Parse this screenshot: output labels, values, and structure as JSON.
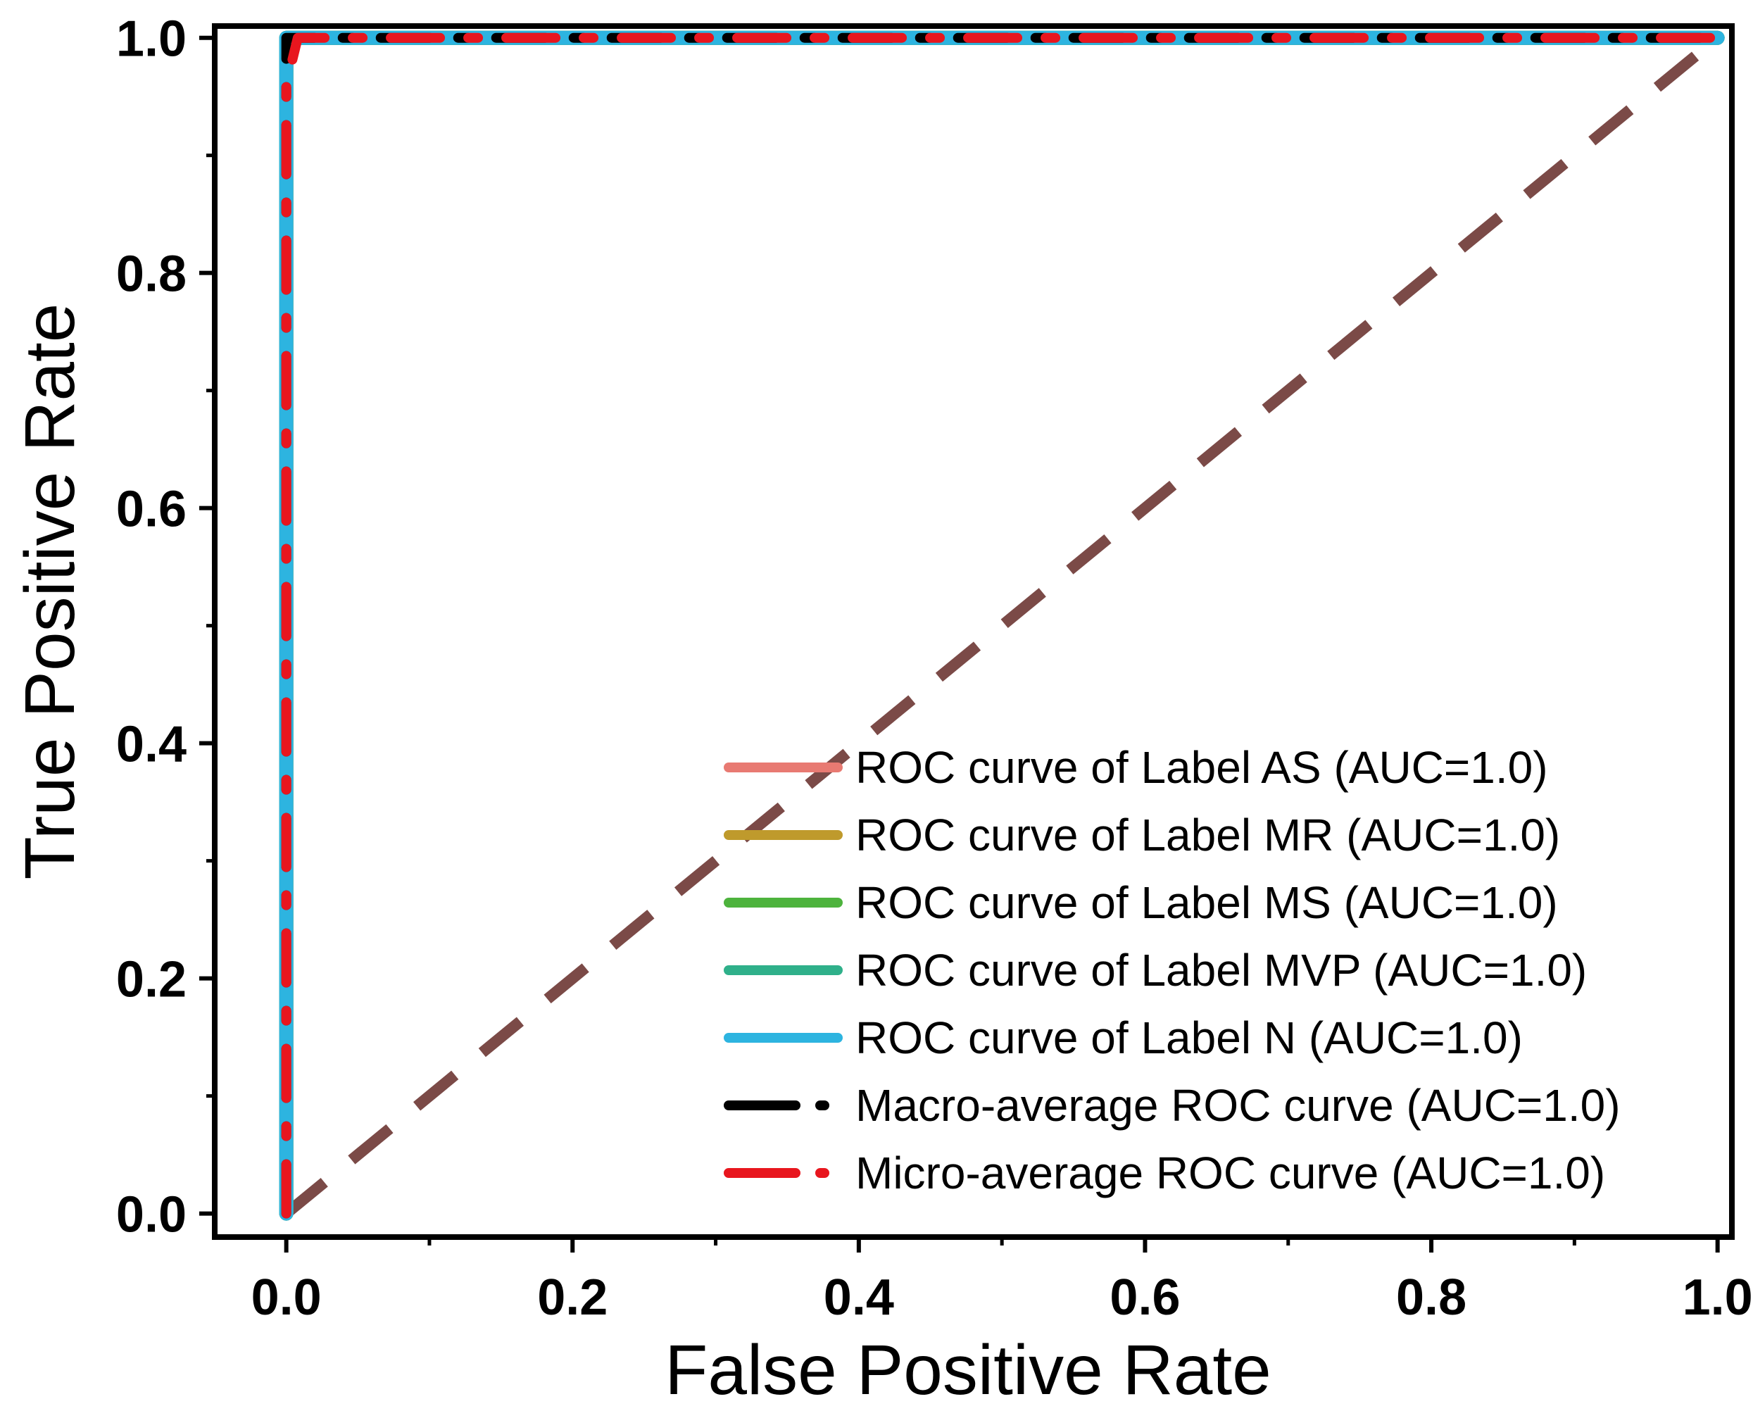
{
  "chart_data": {
    "type": "line",
    "title": "",
    "xlabel": "False Positive Rate",
    "ylabel": "True Positive Rate",
    "xlim": [
      -0.05,
      1.01
    ],
    "ylim": [
      -0.02,
      1.01
    ],
    "xticks": [
      0.0,
      0.2,
      0.4,
      0.6,
      0.8,
      1.0
    ],
    "xtick_labels": [
      "0.0",
      "0.2",
      "0.4",
      "0.6",
      "0.8",
      "1.0"
    ],
    "yticks": [
      0.0,
      0.2,
      0.4,
      0.6,
      0.8,
      1.0
    ],
    "ytick_labels": [
      "0.0",
      "0.2",
      "0.4",
      "0.6",
      "0.8",
      "1.0"
    ],
    "legend_position": "lower-right",
    "series": [
      {
        "name": "ROC curve of Label AS (AUC=1.0)",
        "color": "#E87A72",
        "style": "solid",
        "x": [
          0,
          0,
          1
        ],
        "y": [
          0,
          1,
          1
        ]
      },
      {
        "name": "ROC curve of Label MR (AUC=1.0)",
        "color": "#BF9A2C",
        "style": "solid",
        "x": [
          0,
          0,
          1
        ],
        "y": [
          0,
          1,
          1
        ]
      },
      {
        "name": "ROC curve of Label MS (AUC=1.0)",
        "color": "#4DB33D",
        "style": "solid",
        "x": [
          0,
          0,
          1
        ],
        "y": [
          0,
          1,
          1
        ]
      },
      {
        "name": "ROC curve of Label MVP (AUC=1.0)",
        "color": "#2FB08A",
        "style": "solid",
        "x": [
          0,
          0,
          1
        ],
        "y": [
          0,
          1,
          1
        ]
      },
      {
        "name": "ROC curve of Label N (AUC=1.0)",
        "color": "#2DB4E0",
        "style": "solid",
        "x": [
          0,
          0,
          1
        ],
        "y": [
          0,
          1,
          1
        ]
      },
      {
        "name": "Macro-average ROC curve (AUC=1.0)",
        "color": "#000000",
        "style": "dashed",
        "x": [
          0,
          0,
          1
        ],
        "y": [
          0,
          1,
          1
        ]
      },
      {
        "name": "Micro-average ROC curve (AUC=1.0)",
        "color": "#E8161E",
        "style": "dashed",
        "x": [
          0,
          0,
          0.008,
          1
        ],
        "y": [
          0,
          0.96,
          1,
          1
        ]
      }
    ],
    "reference_line": {
      "color": "#7B4A47",
      "style": "dashed",
      "x": [
        0,
        1
      ],
      "y": [
        0,
        1
      ]
    }
  }
}
